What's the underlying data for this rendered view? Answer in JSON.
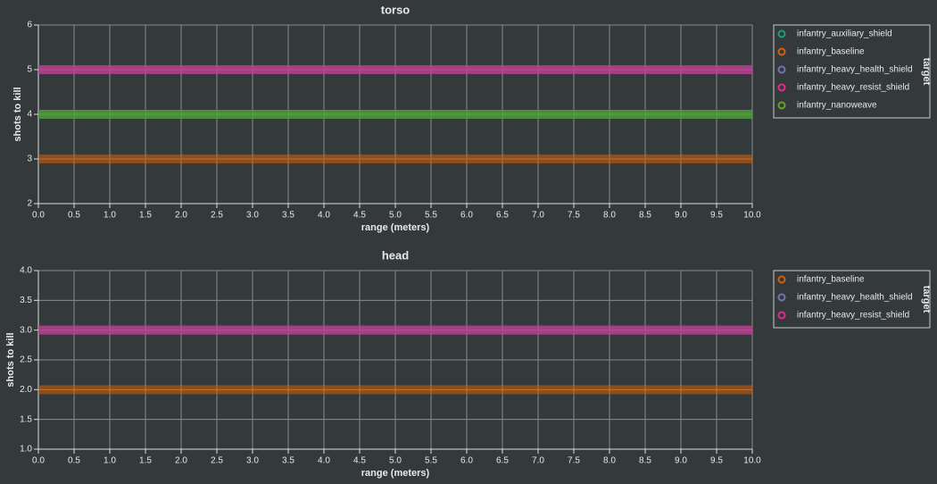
{
  "chart_data": [
    {
      "type": "line",
      "title": "torso",
      "x_label": "range (meters)",
      "y_label": "shots to kill",
      "legend_title": "target",
      "x": [
        0,
        10
      ],
      "xlim": [
        0,
        10
      ],
      "ylim": [
        2,
        6
      ],
      "xticks": [
        {
          "value": 0,
          "label": "0.0"
        },
        0.5,
        {
          "value": 1,
          "label": "1.0"
        },
        1.5,
        {
          "value": 2,
          "label": "2.0"
        },
        2.5,
        {
          "value": 3,
          "label": "3.0"
        },
        3.5,
        {
          "value": 4,
          "label": "4.0"
        },
        4.5,
        {
          "value": 5,
          "label": "5.0"
        },
        5.5,
        {
          "value": 6,
          "label": "6.0"
        },
        6.5,
        {
          "value": 7,
          "label": "7.0"
        },
        7.5,
        {
          "value": 8,
          "label": "8.0"
        },
        8.5,
        {
          "value": 9,
          "label": "9.0"
        },
        9.5,
        {
          "value": 10,
          "label": "10.0"
        }
      ],
      "yticks": [
        2,
        3,
        4,
        5,
        6
      ],
      "grid": true,
      "series": [
        {
          "name": "infantry_auxiliary_shield",
          "color": "#1b9e77",
          "values": [
            4,
            4
          ]
        },
        {
          "name": "infantry_baseline",
          "color": "#d95f02",
          "values": [
            3,
            3
          ]
        },
        {
          "name": "infantry_heavy_health_shield",
          "color": "#7570b3",
          "values": [
            5,
            5
          ]
        },
        {
          "name": "infantry_heavy_resist_shield",
          "color": "#e7298a",
          "values": [
            5,
            5
          ]
        },
        {
          "name": "infantry_nanoweave",
          "color": "#66a61e",
          "values": [
            4,
            4
          ]
        }
      ]
    },
    {
      "type": "line",
      "title": "head",
      "x_label": "range (meters)",
      "y_label": "shots to kill",
      "legend_title": "target",
      "x": [
        0,
        10
      ],
      "xlim": [
        0,
        10
      ],
      "ylim": [
        1,
        4
      ],
      "xticks": [
        {
          "value": 0,
          "label": "0.0"
        },
        0.5,
        {
          "value": 1,
          "label": "1.0"
        },
        1.5,
        {
          "value": 2,
          "label": "2.0"
        },
        2.5,
        {
          "value": 3,
          "label": "3.0"
        },
        3.5,
        {
          "value": 4,
          "label": "4.0"
        },
        4.5,
        {
          "value": 5,
          "label": "5.0"
        },
        5.5,
        {
          "value": 6,
          "label": "6.0"
        },
        6.5,
        {
          "value": 7,
          "label": "7.0"
        },
        7.5,
        {
          "value": 8,
          "label": "8.0"
        },
        8.5,
        {
          "value": 9,
          "label": "9.0"
        },
        9.5,
        {
          "value": 10,
          "label": "10.0"
        }
      ],
      "yticks": [
        {
          "value": 1,
          "label": "1.0"
        },
        1.5,
        {
          "value": 2,
          "label": "2.0"
        },
        2.5,
        {
          "value": 3,
          "label": "3.0"
        },
        3.5,
        {
          "value": 4,
          "label": "4.0"
        }
      ],
      "grid": true,
      "series": [
        {
          "name": "infantry_baseline",
          "color": "#d95f02",
          "values": [
            2,
            2
          ]
        },
        {
          "name": "infantry_heavy_health_shield",
          "color": "#7570b3",
          "values": [
            3,
            3
          ]
        },
        {
          "name": "infantry_heavy_resist_shield",
          "color": "#e7298a",
          "values": [
            3,
            3
          ]
        }
      ]
    }
  ]
}
